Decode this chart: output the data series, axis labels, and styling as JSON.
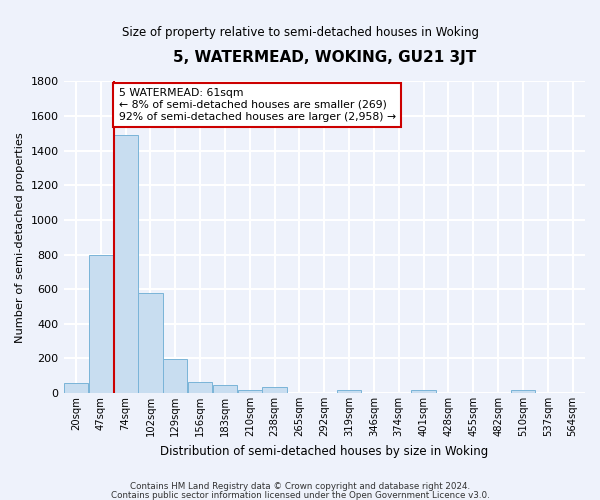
{
  "title": "5, WATERMEAD, WOKING, GU21 3JT",
  "subtitle": "Size of property relative to semi-detached houses in Woking",
  "xlabel": "Distribution of semi-detached houses by size in Woking",
  "ylabel": "Number of semi-detached properties",
  "bar_labels": [
    "20sqm",
    "47sqm",
    "74sqm",
    "102sqm",
    "129sqm",
    "156sqm",
    "183sqm",
    "210sqm",
    "238sqm",
    "265sqm",
    "292sqm",
    "319sqm",
    "346sqm",
    "374sqm",
    "401sqm",
    "428sqm",
    "455sqm",
    "482sqm",
    "510sqm",
    "537sqm",
    "564sqm"
  ],
  "bar_values": [
    55,
    800,
    1490,
    580,
    195,
    65,
    45,
    20,
    35,
    0,
    0,
    15,
    0,
    0,
    15,
    0,
    0,
    0,
    20,
    0,
    0
  ],
  "bar_color": "#c8ddf0",
  "bar_edge_color": "#7ab4d8",
  "background_color": "#eef2fb",
  "grid_color": "#ffffff",
  "annotation_text": "5 WATERMEAD: 61sqm\n← 8% of semi-detached houses are smaller (269)\n92% of semi-detached houses are larger (2,958) →",
  "annotation_box_color": "#ffffff",
  "annotation_box_edge": "#cc0000",
  "vline_index": 1.6,
  "vline_color": "#cc0000",
  "ylim": [
    0,
    1800
  ],
  "footnote1": "Contains HM Land Registry data © Crown copyright and database right 2024.",
  "footnote2": "Contains public sector information licensed under the Open Government Licence v3.0."
}
